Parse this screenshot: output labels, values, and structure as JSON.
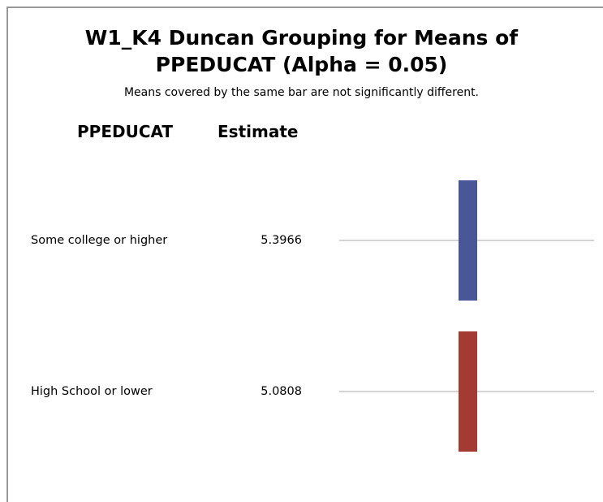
{
  "chart_data": {
    "type": "grouping",
    "title": "W1_K4 Duncan Grouping for Means of PPEDUCAT (Alpha = 0.05)",
    "subtitle": "Means covered by the same bar are not significantly different.",
    "column_headers": [
      "PPEDUCAT",
      "Estimate"
    ],
    "categories": [
      "Some college or higher",
      "High School or lower"
    ],
    "values": [
      5.3966,
      5.0808
    ],
    "colors": [
      "#4a5797",
      "#a33b32"
    ]
  }
}
